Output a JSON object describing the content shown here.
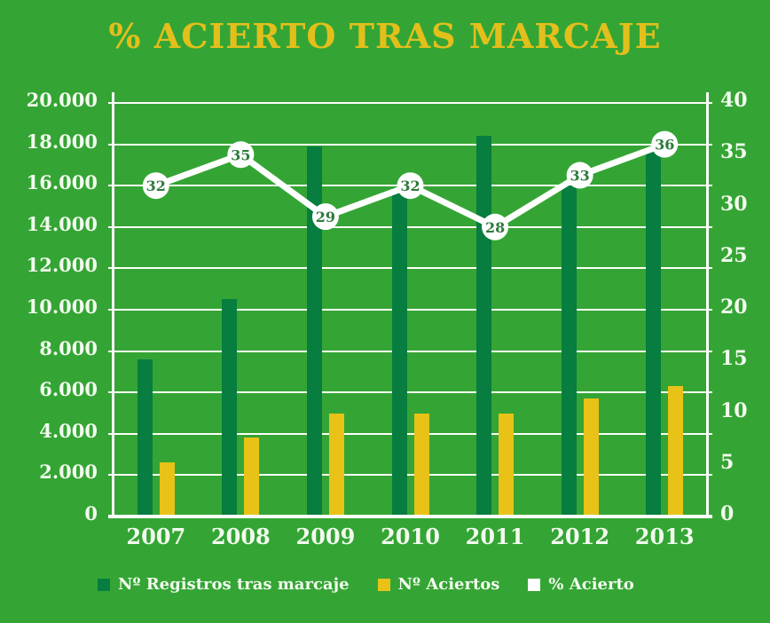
{
  "title": "% ACIERTO TRAS MARCAJE",
  "colors": {
    "background": "#34A534",
    "title": "#E3BF1C",
    "axis_text": "#F2FAEE",
    "axis_line": "#FDFEF9",
    "registros_bar": "#077D40",
    "aciertos_bar": "#E8C217",
    "line": "#FFFFFF",
    "marker_fill": "#FFFFFF",
    "marker_text": "#2E7B3C"
  },
  "chart_data": {
    "type": "combo (grouped bar + line)",
    "title": "% ACIERTO TRAS MARCAJE",
    "categories": [
      "2007",
      "2008",
      "2009",
      "2010",
      "2011",
      "2012",
      "2013"
    ],
    "series": [
      {
        "name": "Nº Registros tras marcaje",
        "type": "bar",
        "axis": "left",
        "color": "#077D40",
        "values": [
          7600,
          10500,
          17900,
          15900,
          18400,
          16000,
          17700
        ]
      },
      {
        "name": "Nº Aciertos",
        "type": "bar",
        "axis": "left",
        "color": "#E8C217",
        "values": [
          2600,
          3800,
          5000,
          5000,
          5000,
          5700,
          6300
        ]
      },
      {
        "name": "% Acierto",
        "type": "line",
        "axis": "right",
        "color": "#FFFFFF",
        "values": [
          32,
          35,
          29,
          32,
          28,
          33,
          36
        ],
        "point_labels_visible": true
      }
    ],
    "left_axis": {
      "min": 0,
      "max": 20000,
      "tick_step": 2000,
      "tick_labels": [
        "0",
        "2.000",
        "4.000",
        "6.000",
        "8.000",
        "10.000",
        "12.000",
        "14.000",
        "16.000",
        "18.000",
        "20.000"
      ]
    },
    "right_axis": {
      "min": 0,
      "max": 40,
      "tick_step": 5,
      "tick_labels": [
        "0",
        "5",
        "10",
        "15",
        "20",
        "25",
        "30",
        "35",
        "40"
      ]
    },
    "grid": "horizontal gridlines at every left-axis tick (2.000)",
    "legend_position": "bottom"
  }
}
